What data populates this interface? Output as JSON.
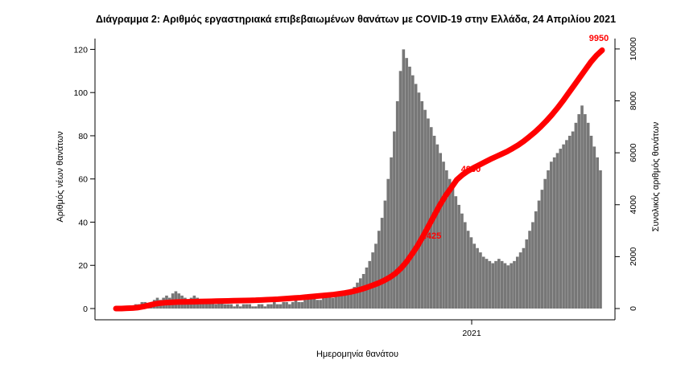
{
  "chart_data": {
    "type": "bar",
    "title": "Διάγραμμα 2: Αριθμός εργαστηριακά επιβεβαιωμένων θανάτων με COVID-19 στην Ελλάδα, 24 Απριλίου 2021",
    "xlabel": "Ημερομηνία θανάτου",
    "ylabel": "Αριθμός νέων θανάτων",
    "ylabel_right": "Συνολικός αριθμός θανάτων",
    "x_tick_labels": [
      "2021"
    ],
    "y_ticks": [
      0,
      20,
      40,
      60,
      80,
      100,
      120
    ],
    "y2_ticks": [
      0,
      2000,
      4000,
      6000,
      8000,
      10000
    ],
    "ylim": [
      0,
      125
    ],
    "y2lim": [
      0,
      10400
    ],
    "bar_color": "#777777",
    "cumulative_color": "#ff0000",
    "annotations": [
      "2425",
      "4960",
      "9950"
    ],
    "daily_deaths": [
      0,
      0,
      0,
      1,
      1,
      1,
      2,
      2,
      3,
      3,
      2,
      3,
      4,
      5,
      4,
      5,
      6,
      5,
      7,
      8,
      7,
      6,
      5,
      4,
      5,
      6,
      5,
      4,
      4,
      3,
      3,
      3,
      2,
      3,
      3,
      2,
      2,
      2,
      1,
      2,
      1,
      2,
      2,
      2,
      1,
      1,
      2,
      2,
      1,
      2,
      2,
      3,
      2,
      2,
      3,
      3,
      2,
      3,
      4,
      3,
      3,
      4,
      5,
      6,
      5,
      4,
      4,
      5,
      6,
      6,
      5,
      6,
      7,
      8,
      8,
      7,
      9,
      10,
      12,
      14,
      16,
      19,
      22,
      26,
      30,
      36,
      42,
      50,
      60,
      70,
      82,
      96,
      110,
      120,
      116,
      112,
      108,
      104,
      100,
      96,
      92,
      88,
      84,
      80,
      76,
      72,
      68,
      64,
      60,
      56,
      52,
      48,
      44,
      40,
      36,
      33,
      30,
      28,
      26,
      24,
      23,
      22,
      21,
      22,
      23,
      22,
      21,
      20,
      21,
      22,
      24,
      26,
      28,
      32,
      36,
      40,
      45,
      50,
      55,
      60,
      64,
      68,
      70,
      72,
      74,
      76,
      78,
      80,
      82,
      86,
      90,
      94,
      90,
      86,
      80,
      75,
      70,
      64
    ],
    "cumulative_deaths": [
      0,
      0,
      10,
      20,
      40,
      80,
      130,
      180,
      210,
      230,
      240,
      250,
      255,
      260,
      265,
      270,
      275,
      280,
      285,
      290,
      295,
      300,
      305,
      310,
      315,
      320,
      330,
      340,
      350,
      360,
      375,
      390,
      405,
      420,
      440,
      460,
      480,
      500,
      520,
      540,
      570,
      600,
      640,
      690,
      750,
      820,
      900,
      980,
      1080,
      1200,
      1350,
      1550,
      1800,
      2100,
      2425,
      2800,
      3200,
      3600,
      4000,
      4350,
      4650,
      4960,
      5150,
      5300,
      5420,
      5530,
      5640,
      5750,
      5850,
      5950,
      6050,
      6170,
      6300,
      6450,
      6620,
      6800,
      7000,
      7220,
      7460,
      7720,
      8000,
      8300,
      8600,
      8900,
      9200,
      9500,
      9750,
      9950
    ]
  }
}
